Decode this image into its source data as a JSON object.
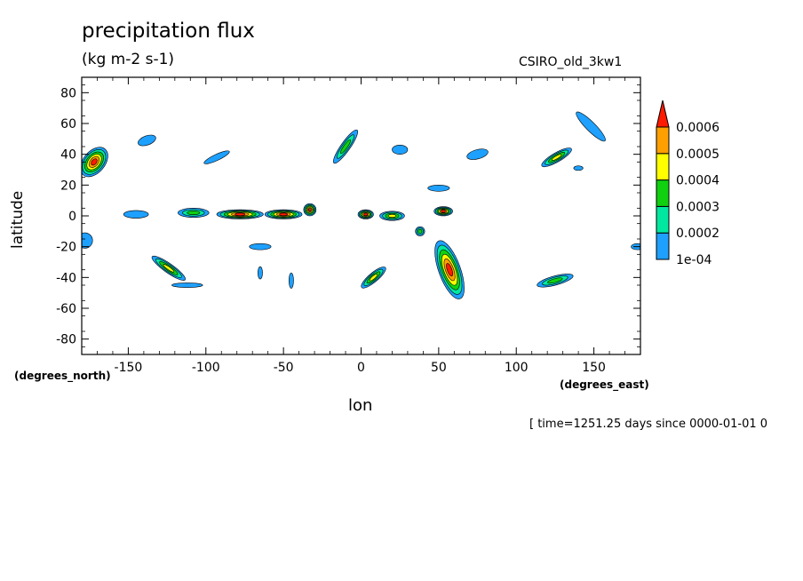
{
  "chart_data": {
    "type": "heatmap",
    "title": "precipitation flux",
    "units": "(kg m-2 s-1)",
    "model": "CSIRO_old_3kw1",
    "xlabel": "lon",
    "ylabel": "latitude",
    "x_unit_note": "(degrees_east)",
    "y_unit_note": "(degrees_north)",
    "time_note": "[ time=1251.25 days since 0000-01-01 0",
    "xlim": [
      -180,
      180
    ],
    "ylim": [
      -90,
      90
    ],
    "x_ticks": [
      -150,
      -100,
      -50,
      0,
      50,
      100,
      150
    ],
    "x_tick_labels": [
      "-150",
      "-100",
      "-50",
      "0",
      "50",
      "100",
      "150"
    ],
    "y_ticks": [
      80,
      60,
      40,
      20,
      0,
      -20,
      -40,
      -60,
      -80
    ],
    "y_tick_labels": [
      "80",
      "60",
      "40",
      "20",
      "0",
      "-20",
      "-40",
      "-60",
      "-80"
    ],
    "colorbar": {
      "levels": [
        0.0001,
        0.0002,
        0.0003,
        0.0004,
        0.0005,
        0.0006
      ],
      "labels": [
        "1e-04",
        "0.0002",
        "0.0003",
        "0.0004",
        "0.0005",
        "0.0006"
      ],
      "colors": [
        "#1ea0ff",
        "#00e8a0",
        "#10d010",
        "#ffff00",
        "#ffa000",
        "#ff1a00"
      ]
    },
    "features": [
      {
        "lon": -172,
        "lat": 35,
        "rx": 7,
        "ry": 11,
        "rot": 40,
        "peak": 5
      },
      {
        "lon": -178,
        "lat": -16,
        "rx": 5,
        "ry": 5,
        "rot": 0,
        "peak": 0
      },
      {
        "lon": -138,
        "lat": 49,
        "rx": 6,
        "ry": 3,
        "rot": -20,
        "peak": 0
      },
      {
        "lon": -93,
        "lat": 38,
        "rx": 9,
        "ry": 2,
        "rot": -25,
        "peak": 0
      },
      {
        "lon": -124,
        "lat": -34,
        "rx": 13,
        "ry": 3,
        "rot": 35,
        "peak": 3
      },
      {
        "lon": -112,
        "lat": -45,
        "rx": 10,
        "ry": 1.5,
        "rot": 0,
        "peak": 0
      },
      {
        "lon": -65,
        "lat": -20,
        "rx": 7,
        "ry": 2,
        "rot": 0,
        "peak": 0
      },
      {
        "lon": -65,
        "lat": -37,
        "rx": 1.5,
        "ry": 4,
        "rot": 0,
        "peak": 0
      },
      {
        "lon": -45,
        "lat": -42,
        "rx": 1.5,
        "ry": 5,
        "rot": 0,
        "peak": 0
      },
      {
        "lon": -10,
        "lat": 45,
        "rx": 13,
        "ry": 3,
        "rot": -55,
        "peak": 2
      },
      {
        "lon": 25,
        "lat": 43,
        "rx": 5,
        "ry": 3,
        "rot": 0,
        "peak": 0
      },
      {
        "lon": 50,
        "lat": 18,
        "rx": 7,
        "ry": 2,
        "rot": 0,
        "peak": 0
      },
      {
        "lon": 75,
        "lat": 40,
        "rx": 7,
        "ry": 3,
        "rot": -15,
        "peak": 0
      },
      {
        "lon": 126,
        "lat": 38,
        "rx": 11,
        "ry": 3,
        "rot": -30,
        "peak": 3
      },
      {
        "lon": 148,
        "lat": 58,
        "rx": 13,
        "ry": 3,
        "rot": 45,
        "peak": 0
      },
      {
        "lon": 140,
        "lat": 31,
        "rx": 3,
        "ry": 1.5,
        "rot": 0,
        "peak": 0
      },
      {
        "lon": 8,
        "lat": -40,
        "rx": 10,
        "ry": 3,
        "rot": -40,
        "peak": 3
      },
      {
        "lon": 57,
        "lat": -35,
        "rx": 7,
        "ry": 20,
        "rot": -20,
        "peak": 5
      },
      {
        "lon": 125,
        "lat": -42,
        "rx": 12,
        "ry": 3,
        "rot": -15,
        "peak": 2
      },
      {
        "lon": 178,
        "lat": -20,
        "rx": 4,
        "ry": 2,
        "rot": 0,
        "peak": 0
      },
      {
        "lon": -145,
        "lat": 1,
        "rx": 8,
        "ry": 2.5,
        "rot": 0,
        "peak": 0
      },
      {
        "lon": -108,
        "lat": 2,
        "rx": 10,
        "ry": 3,
        "rot": 0,
        "peak": 2
      },
      {
        "lon": -78,
        "lat": 1,
        "rx": 15,
        "ry": 3,
        "rot": 0,
        "peak": 5
      },
      {
        "lon": -50,
        "lat": 1,
        "rx": 12,
        "ry": 3,
        "rot": 0,
        "peak": 5
      },
      {
        "lon": -33,
        "lat": 4,
        "rx": 4,
        "ry": 4,
        "rot": 0,
        "peak": 5
      },
      {
        "lon": 3,
        "lat": 1,
        "rx": 5,
        "ry": 3,
        "rot": 0,
        "peak": 5
      },
      {
        "lon": 20,
        "lat": 0,
        "rx": 8,
        "ry": 3,
        "rot": 0,
        "peak": 3
      },
      {
        "lon": 53,
        "lat": 3,
        "rx": 6,
        "ry": 3,
        "rot": 0,
        "peak": 5
      },
      {
        "lon": 38,
        "lat": -10,
        "rx": 3,
        "ry": 3,
        "rot": 0,
        "peak": 2
      }
    ]
  }
}
